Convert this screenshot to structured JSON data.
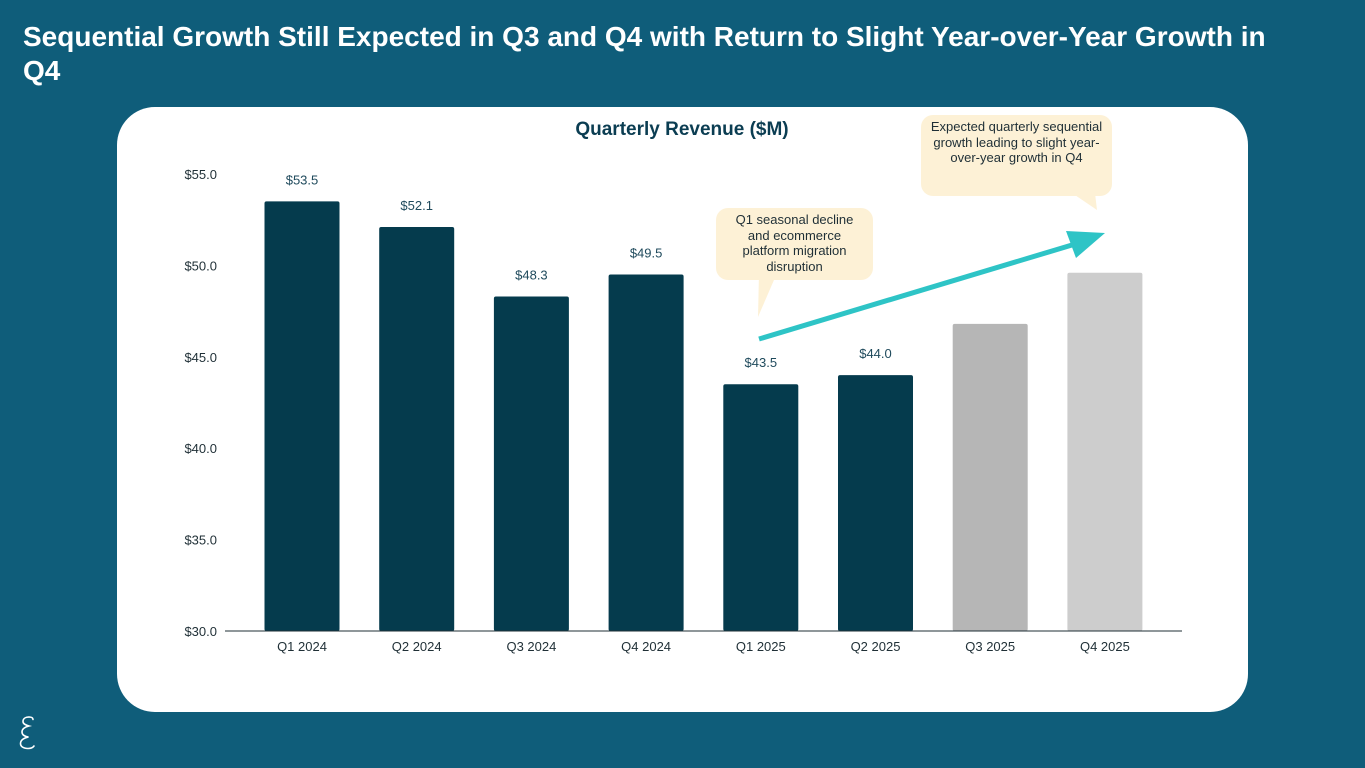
{
  "slide": {
    "title": "Sequential Growth Still Expected in Q3 and Q4 with Return to Slight Year-over-Year Growth in Q4"
  },
  "chart_data": {
    "type": "bar",
    "title": "Quarterly Revenue ($M)",
    "categories": [
      "Q1 2024",
      "Q2 2024",
      "Q3 2024",
      "Q4 2024",
      "Q1 2025",
      "Q2 2025",
      "Q3 2025",
      "Q4 2025"
    ],
    "values": [
      53.5,
      52.1,
      48.3,
      49.5,
      43.5,
      44.0,
      46.8,
      49.6
    ],
    "value_labels": [
      "$53.5",
      "$52.1",
      "$48.3",
      "$49.5",
      "$43.5",
      "$44.0",
      "",
      ""
    ],
    "projected": [
      false,
      false,
      false,
      false,
      false,
      false,
      true,
      true
    ],
    "ylim": [
      30,
      55
    ],
    "yticks": [
      30,
      35,
      40,
      45,
      50,
      55
    ],
    "ytick_labels": [
      "$30.0",
      "$35.0",
      "$40.0",
      "$45.0",
      "$50.0",
      "$55.0"
    ],
    "xlabel": "",
    "ylabel": "",
    "grid": false,
    "colors": {
      "actual": "#053b4d",
      "projected_q3": "#b6b6b6",
      "projected_q4": "#cdcdcd",
      "trend_arrow": "#2ec4c6",
      "axis": "#1f2f36"
    },
    "annotations": [
      "Q1 seasonal decline and ecommerce platform migration disruption",
      "Expected quarterly sequential growth leading to slight year-over-year growth in Q4"
    ]
  }
}
